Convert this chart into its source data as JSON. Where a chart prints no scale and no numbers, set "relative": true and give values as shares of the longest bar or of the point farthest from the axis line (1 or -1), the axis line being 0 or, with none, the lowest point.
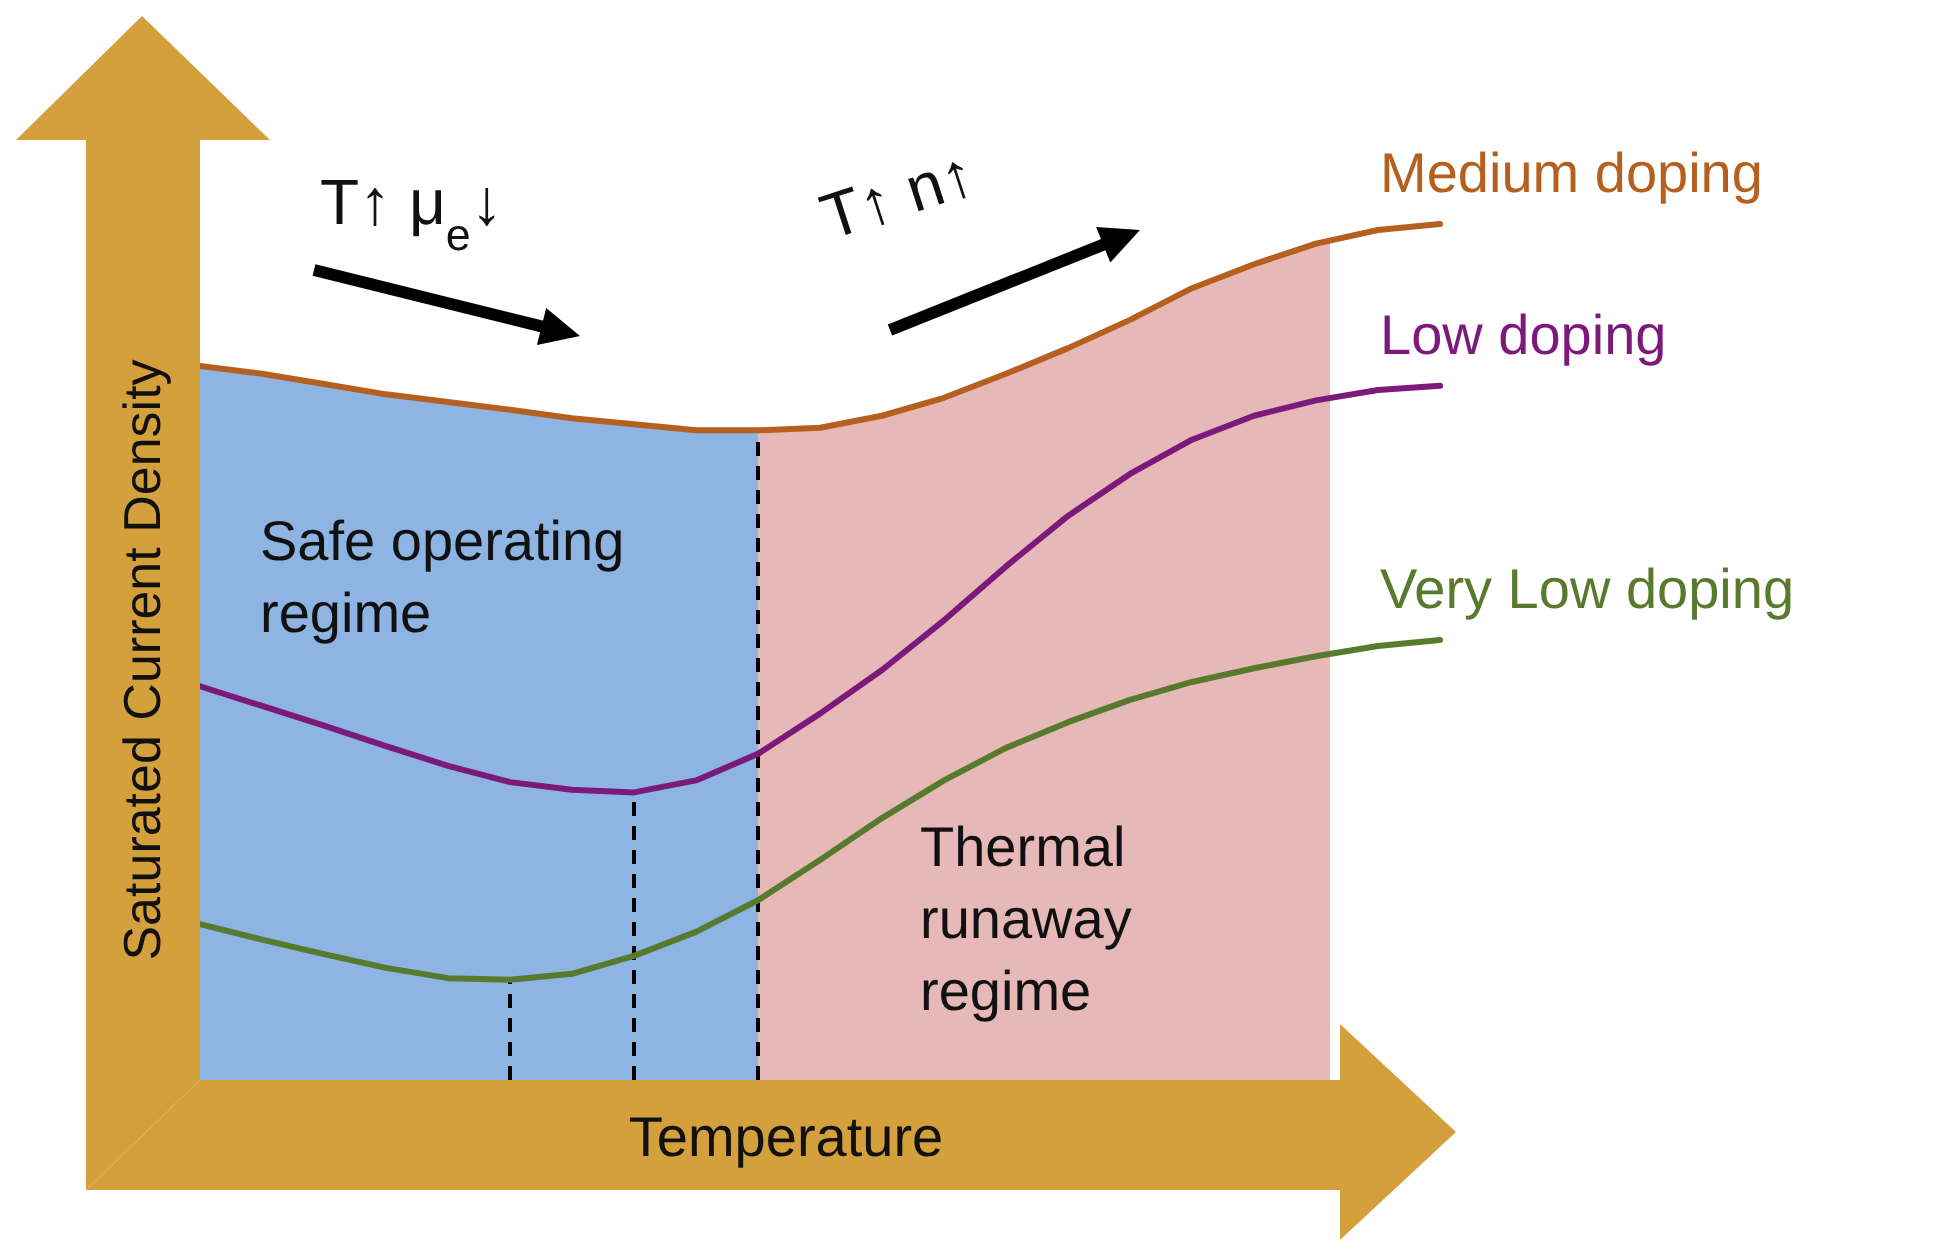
{
  "chart_data": {
    "type": "line",
    "relative": true,
    "xlabel": "Temperature",
    "ylabel": "Saturated Current Density",
    "legend": false,
    "categories": [
      null,
      null,
      null,
      null,
      null,
      null,
      null,
      null,
      null,
      null,
      null,
      null,
      null,
      null,
      null,
      null,
      null,
      null,
      null,
      null,
      null
    ],
    "series": [
      {
        "name": "Medium doping",
        "color": "#b5601f",
        "values": [
          0.834,
          0.825,
          0.813,
          0.801,
          0.792,
          0.783,
          0.773,
          0.766,
          0.759,
          0.759,
          0.762,
          0.776,
          0.797,
          0.825,
          0.855,
          0.888,
          0.925,
          0.953,
          0.977,
          0.993,
          1
        ]
      },
      {
        "name": "Low doping",
        "color": "#7b1a7b",
        "values": [
          0.46,
          0.437,
          0.414,
          0.39,
          0.367,
          0.348,
          0.339,
          0.336,
          0.35,
          0.381,
          0.428,
          0.479,
          0.537,
          0.6,
          0.659,
          0.708,
          0.748,
          0.776,
          0.794,
          0.806,
          0.811
        ]
      },
      {
        "name": "Very Low doping",
        "color": "#587a2c",
        "values": [
          0.182,
          0.164,
          0.147,
          0.131,
          0.119,
          0.117,
          0.124,
          0.145,
          0.173,
          0.21,
          0.257,
          0.306,
          0.35,
          0.388,
          0.418,
          0.444,
          0.465,
          0.481,
          0.495,
          0.507,
          0.514
        ]
      }
    ],
    "annotations": [
      "Safe operating regime",
      "Thermal runaway regime",
      "T↑ μ$_{e}$↓",
      "T↑ n↑"
    ]
  }
}
